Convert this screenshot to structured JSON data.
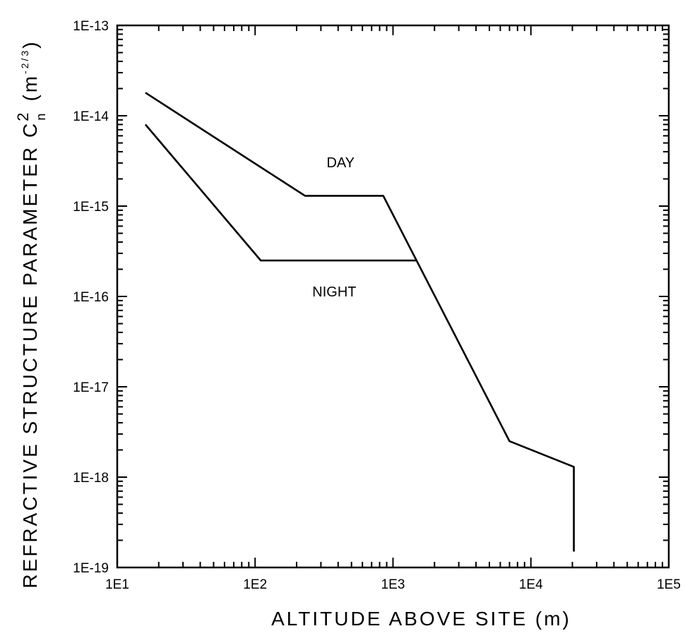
{
  "chart_data": {
    "type": "line",
    "title": "",
    "xlabel": "ALTITUDE ABOVE SITE (m)",
    "ylabel_main": "REFRACTIVE STRUCTURE PARAMETER C",
    "ylabel_sup": "2",
    "ylabel_sub": "n",
    "ylabel_unit_open": "(m",
    "ylabel_unit_exp": "-2/3",
    "ylabel_unit_close": ")",
    "x_scale": "log",
    "y_scale": "log",
    "xlim": [
      10,
      100000
    ],
    "ylim": [
      1e-19,
      1e-13
    ],
    "x_tick_labels": [
      "1E1",
      "1E2",
      "1E3",
      "1E4",
      "1E5"
    ],
    "y_tick_labels": [
      "1E-13",
      "1E-14",
      "1E-15",
      "1E-16",
      "1E-17",
      "1E-18",
      "1E-19"
    ],
    "grid": false,
    "series": [
      {
        "name": "DAY",
        "x": [
          16,
          230,
          850,
          7000,
          20500,
          20500
        ],
        "y": [
          1.8e-14,
          1.3e-15,
          1.3e-15,
          2.5e-18,
          1.3e-18,
          1.5e-19
        ]
      },
      {
        "name": "NIGHT",
        "x": [
          16,
          110,
          1500
        ],
        "y": [
          8e-15,
          2.5e-16,
          2.5e-16
        ]
      }
    ]
  }
}
